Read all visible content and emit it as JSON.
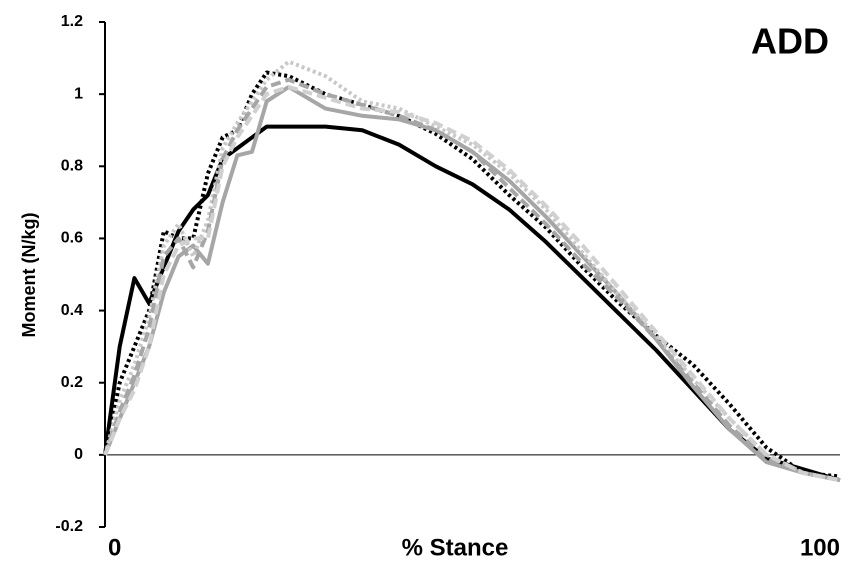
{
  "chart_data": {
    "type": "line",
    "annotation": "ADD",
    "x_label": "% Stance",
    "y_label": "Moment (N/kg)",
    "xlim": [
      0,
      100
    ],
    "xticks": [
      0,
      100
    ],
    "ylim": [
      -0.2,
      1.2
    ],
    "yticks": [
      -0.2,
      0,
      0.2,
      0.4,
      0.6,
      0.8,
      1,
      1.2
    ],
    "x": [
      0,
      2,
      4,
      6,
      8,
      10,
      12,
      14,
      16,
      18,
      20,
      22,
      25,
      30,
      35,
      40,
      45,
      50,
      55,
      60,
      65,
      70,
      75,
      80,
      85,
      90,
      95,
      100
    ],
    "series": [
      {
        "color": "#000000",
        "dash": "solid",
        "values": [
          0,
          0.3,
          0.49,
          0.42,
          0.52,
          0.62,
          0.68,
          0.72,
          0.82,
          0.85,
          0.88,
          0.91,
          0.91,
          0.91,
          0.9,
          0.86,
          0.8,
          0.75,
          0.68,
          0.59,
          0.49,
          0.39,
          0.29,
          0.18,
          0.07,
          -0.01,
          -0.04,
          -0.07
        ]
      },
      {
        "color": "#000000",
        "dash": "dotted",
        "values": [
          0,
          0.2,
          0.3,
          0.4,
          0.62,
          0.6,
          0.6,
          0.78,
          0.88,
          0.9,
          1.0,
          1.06,
          1.05,
          1.0,
          0.97,
          0.94,
          0.89,
          0.82,
          0.72,
          0.63,
          0.52,
          0.42,
          0.33,
          0.25,
          0.14,
          0.02,
          -0.05,
          -0.06
        ]
      },
      {
        "color": "#a6a6a6",
        "dash": "solid",
        "values": [
          0,
          0.1,
          0.2,
          0.3,
          0.45,
          0.55,
          0.58,
          0.53,
          0.7,
          0.83,
          0.84,
          0.98,
          1.02,
          0.96,
          0.94,
          0.93,
          0.9,
          0.84,
          0.76,
          0.66,
          0.55,
          0.44,
          0.32,
          0.19,
          0.07,
          -0.02,
          -0.05,
          -0.07
        ]
      },
      {
        "color": "#c8c8c8",
        "dash": "dotted",
        "values": [
          0,
          0.15,
          0.25,
          0.38,
          0.58,
          0.64,
          0.55,
          0.65,
          0.85,
          0.92,
          0.98,
          1.04,
          1.09,
          1.05,
          0.98,
          0.96,
          0.91,
          0.86,
          0.78,
          0.68,
          0.56,
          0.44,
          0.33,
          0.21,
          0.1,
          0.0,
          -0.05,
          -0.07
        ]
      },
      {
        "color": "#a6a6a6",
        "dash": "dashed",
        "values": [
          0,
          0.12,
          0.22,
          0.35,
          0.55,
          0.6,
          0.52,
          0.62,
          0.82,
          0.9,
          0.96,
          1.02,
          1.04,
          1.0,
          0.97,
          0.94,
          0.9,
          0.84,
          0.74,
          0.64,
          0.53,
          0.43,
          0.32,
          0.2,
          0.08,
          -0.01,
          -0.05,
          -0.07
        ]
      },
      {
        "color": "#d0d0d0",
        "dash": "dashed",
        "values": [
          0,
          0.1,
          0.18,
          0.3,
          0.5,
          0.58,
          0.6,
          0.6,
          0.8,
          0.88,
          0.94,
          1.0,
          1.02,
          0.99,
          0.96,
          0.95,
          0.92,
          0.87,
          0.79,
          0.69,
          0.58,
          0.46,
          0.34,
          0.22,
          0.1,
          0.0,
          -0.05,
          -0.07
        ]
      }
    ]
  }
}
